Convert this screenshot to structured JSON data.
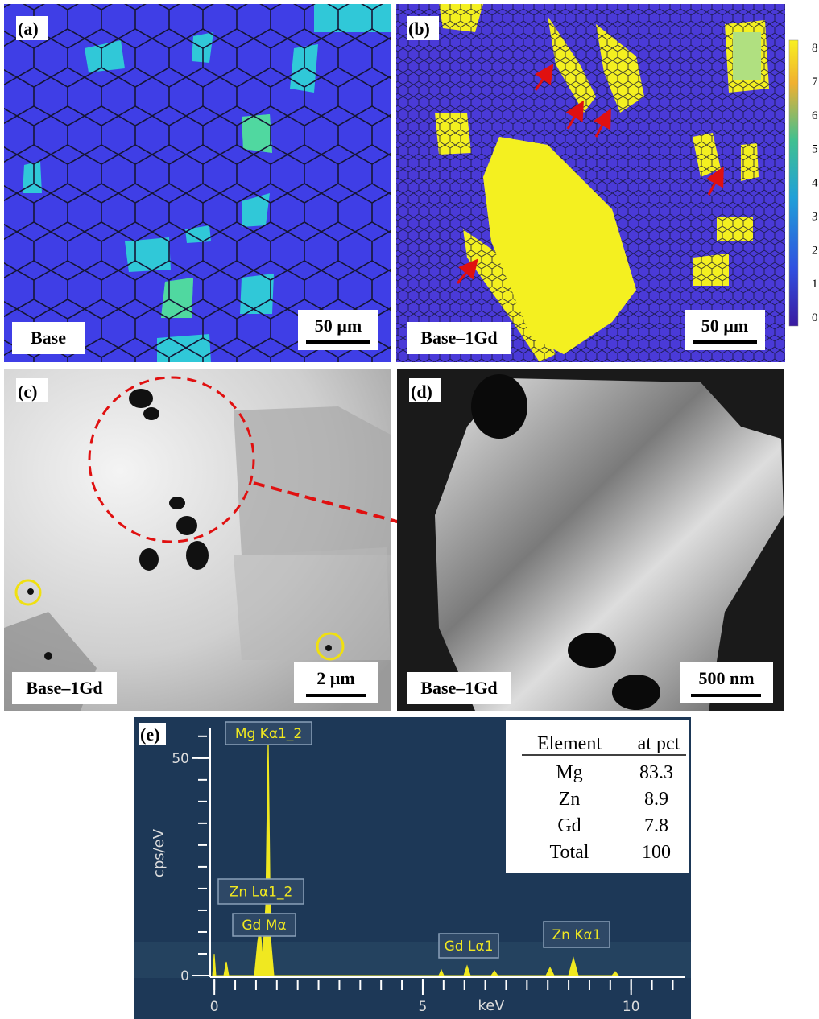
{
  "panels": [
    {
      "label": "(a)",
      "sample": "Base",
      "scale_bar": "50 µm"
    },
    {
      "label": "(b)",
      "sample": "Base–1Gd",
      "scale_bar": "50 µm"
    },
    {
      "label": "(c)",
      "sample": "Base–1Gd",
      "scale_bar": "2 µm"
    },
    {
      "label": "(d)",
      "sample": "Base–1Gd",
      "scale_bar": "500 nm"
    }
  ],
  "colorbar": {
    "ticks": [
      "8",
      "7",
      "6",
      "5",
      "4",
      "3",
      "2",
      "1",
      "0"
    ]
  },
  "spectrum": {
    "label": "(e)",
    "x_label": "keV",
    "y_label": "cps/eV",
    "xlim": [
      -0.1,
      11.3
    ],
    "ylim": [
      0,
      57
    ],
    "xticks": [
      0,
      5,
      10
    ],
    "yticks": [
      0,
      50
    ],
    "peak_labels": [
      "Mg Kα1_2",
      "Zn Lα1_2",
      "Gd Mα",
      "Gd Lα1",
      "Zn Kα1"
    ]
  },
  "table": {
    "header": [
      "Element",
      "at pct"
    ],
    "rows": [
      [
        "Mg",
        "83.3"
      ],
      [
        "Zn",
        "8.9"
      ],
      [
        "Gd",
        "7.8"
      ],
      [
        "Total",
        "100"
      ]
    ]
  }
}
